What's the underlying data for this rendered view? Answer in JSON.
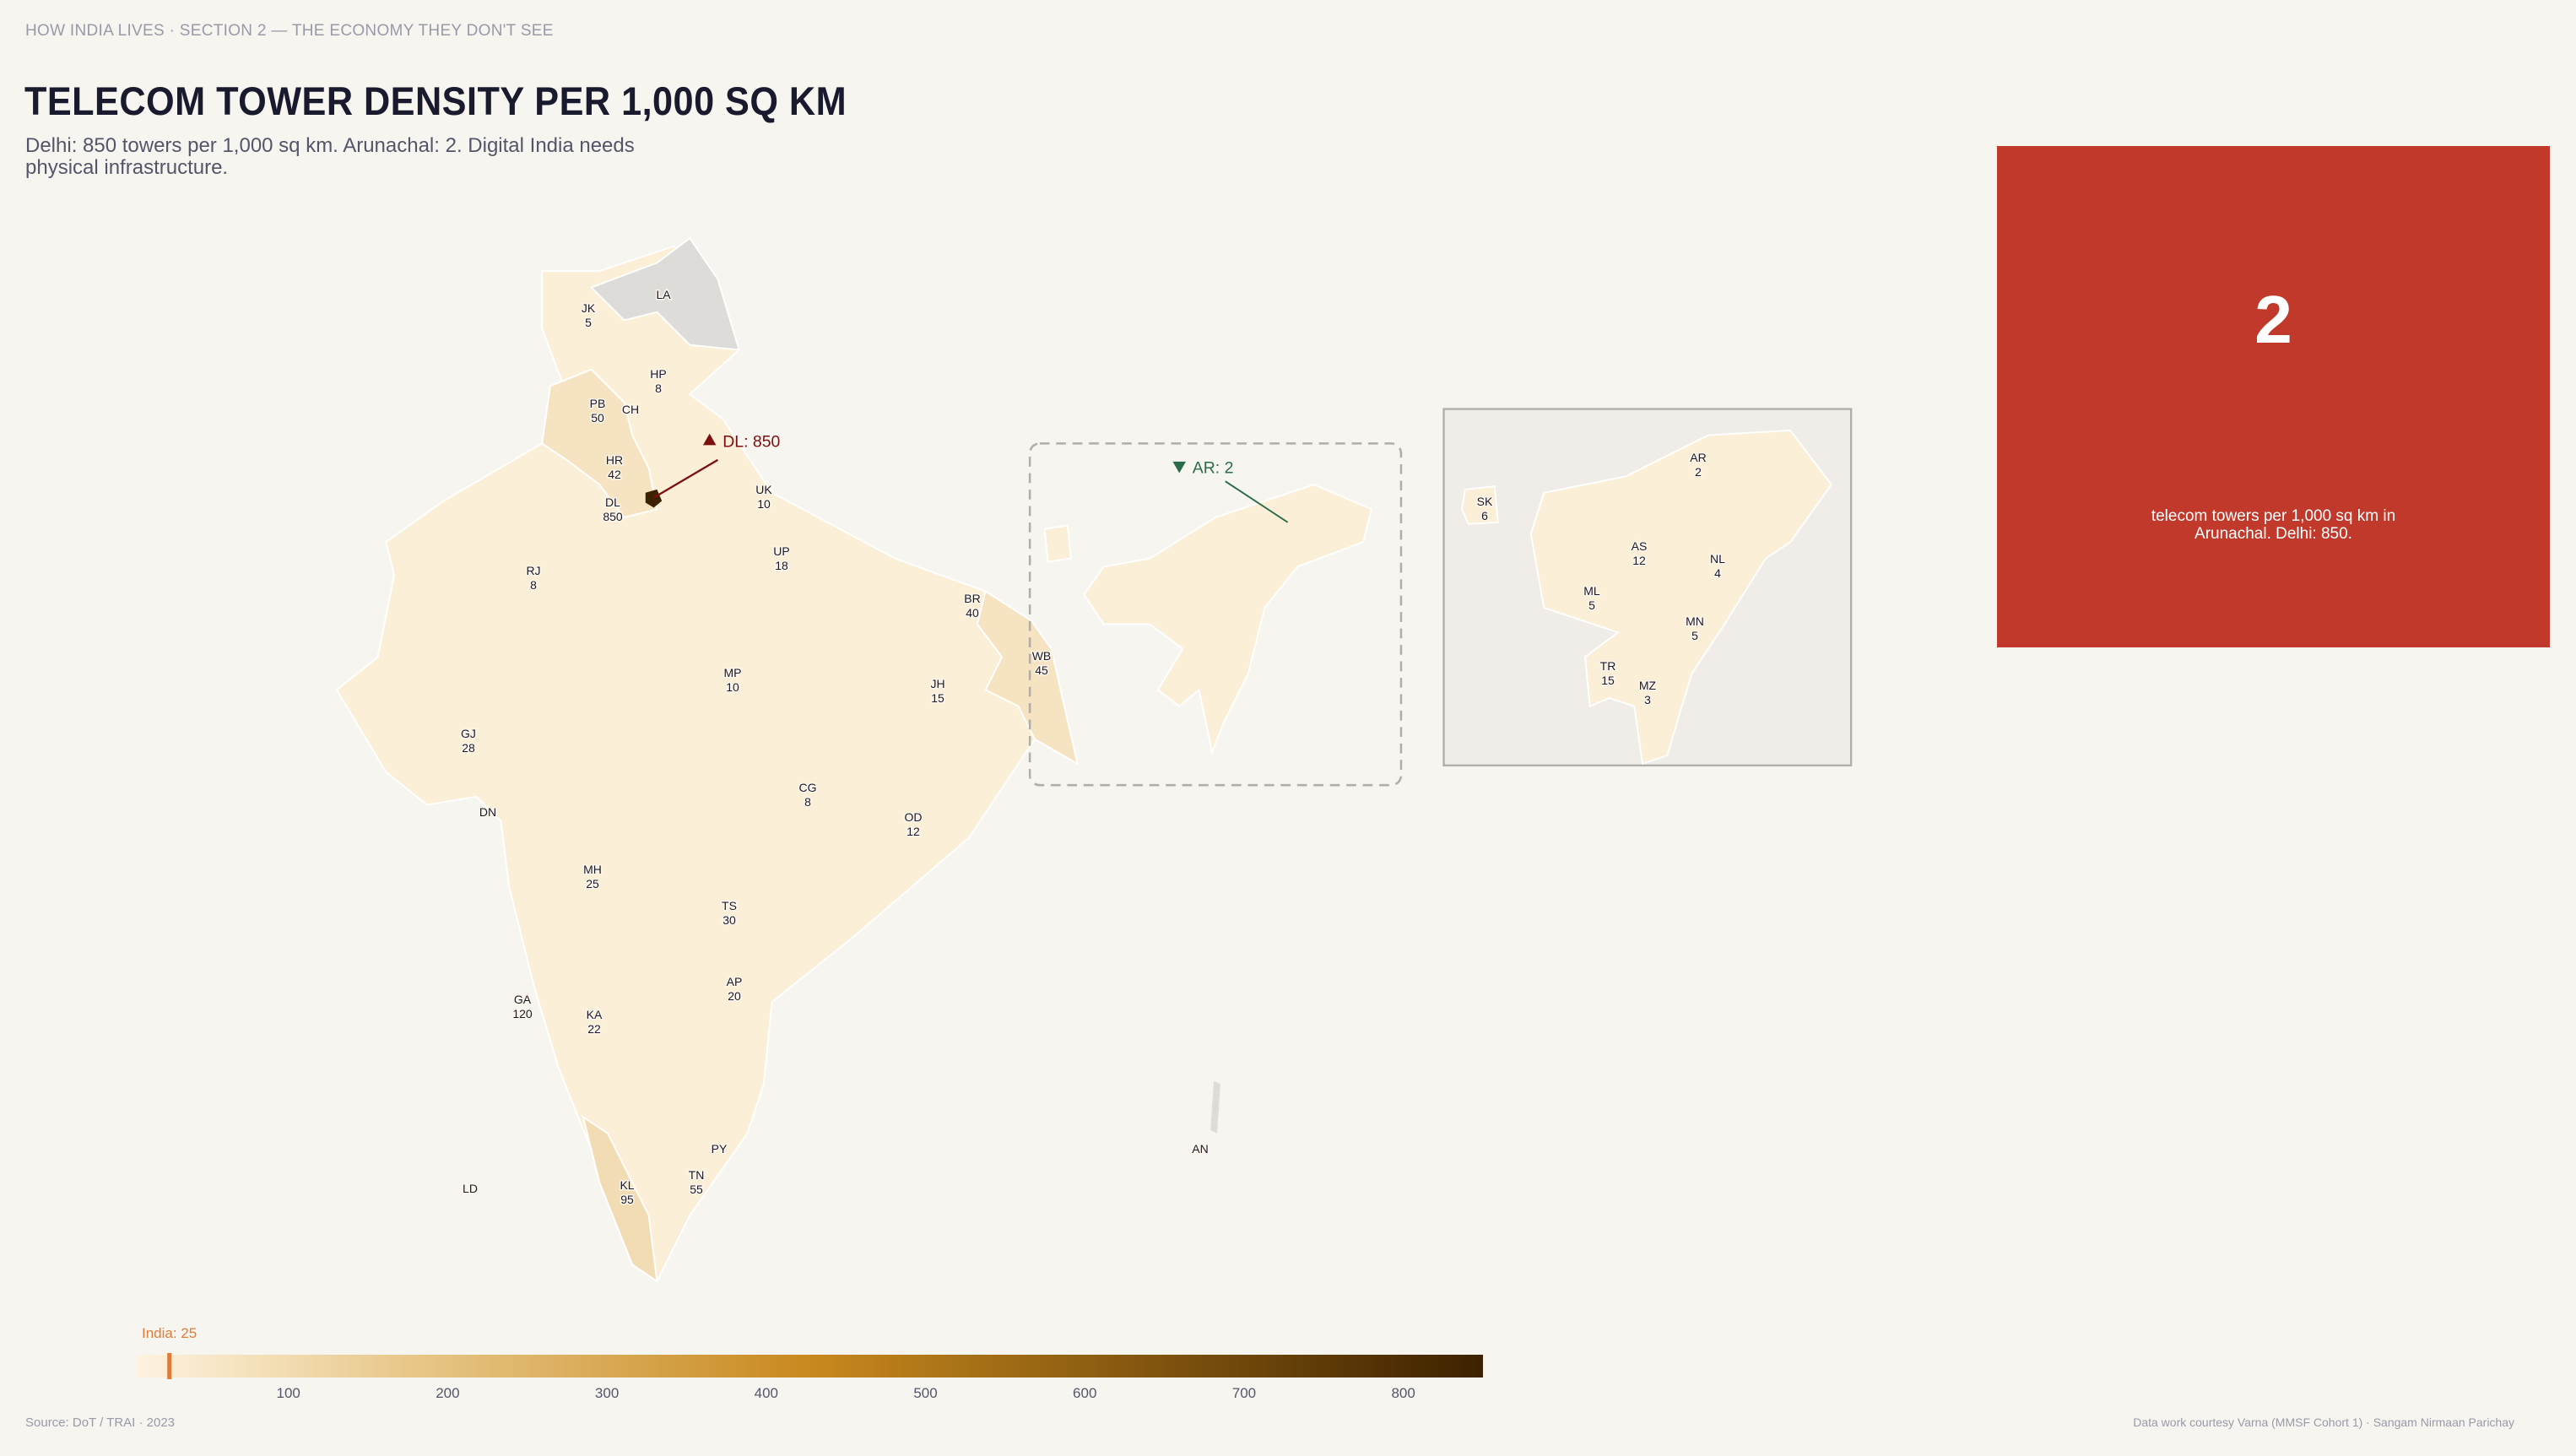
{
  "header": {
    "kicker": "HOW INDIA LIVES  ·  SECTION 2 — THE ECONOMY THEY DON'T SEE",
    "title": "TELECOM TOWER DENSITY PER 1,000 SQ KM",
    "subtitle": "Delhi: 850 towers per 1,000 sq km. Arunachal: 2. Digital India needs physical infrastructure."
  },
  "callout_card": {
    "value": "2",
    "text": "telecom towers per 1,000 sq km in Arunachal. Delhi: 850.",
    "color": "#c0392b"
  },
  "footer": {
    "source": "Source: DoT / TRAI  ·  2023",
    "credit": "Data work courtesy Varna (MMSF Cohort 1)  ·  Sangam Nirmaan Parichay"
  },
  "chart_data": {
    "type": "choropleth",
    "title": "TELECOM TOWER DENSITY PER 1,000 SQ KM",
    "unit": "towers per 1,000 sq km",
    "colorscale": {
      "min": 0,
      "max": 850,
      "colors": [
        "#fdf3e0",
        "#e8c88a",
        "#c8891e",
        "#3d2200"
      ],
      "ticks": [
        100,
        200,
        300,
        400,
        500,
        600,
        700,
        800
      ]
    },
    "national_average": {
      "label": "India: 25",
      "value": 25,
      "color": "#e07b39"
    },
    "no_data_color": "#dedcd8",
    "states": [
      {
        "code": "JK",
        "value": 5
      },
      {
        "code": "LA",
        "value": null
      },
      {
        "code": "HP",
        "value": 8
      },
      {
        "code": "PB",
        "value": 50
      },
      {
        "code": "CH",
        "value": null
      },
      {
        "code": "HR",
        "value": 42
      },
      {
        "code": "DL",
        "value": 850
      },
      {
        "code": "UK",
        "value": 10
      },
      {
        "code": "RJ",
        "value": 8
      },
      {
        "code": "UP",
        "value": 18
      },
      {
        "code": "BR",
        "value": 40
      },
      {
        "code": "WB",
        "value": 45
      },
      {
        "code": "JH",
        "value": 15
      },
      {
        "code": "MP",
        "value": 10
      },
      {
        "code": "GJ",
        "value": 28
      },
      {
        "code": "CG",
        "value": 8
      },
      {
        "code": "OD",
        "value": 12
      },
      {
        "code": "DN",
        "value": null
      },
      {
        "code": "MH",
        "value": 25
      },
      {
        "code": "TS",
        "value": 30
      },
      {
        "code": "AP",
        "value": 20
      },
      {
        "code": "GA",
        "value": 120
      },
      {
        "code": "KA",
        "value": 22
      },
      {
        "code": "PY",
        "value": null
      },
      {
        "code": "TN",
        "value": 55
      },
      {
        "code": "KL",
        "value": 95
      },
      {
        "code": "LD",
        "value": null
      },
      {
        "code": "AN",
        "value": null
      }
    ],
    "inset_states": [
      {
        "code": "SK",
        "value": 6
      },
      {
        "code": "AR",
        "value": 2
      },
      {
        "code": "AS",
        "value": 12
      },
      {
        "code": "NL",
        "value": 4
      },
      {
        "code": "ML",
        "value": 5
      },
      {
        "code": "MN",
        "value": 5
      },
      {
        "code": "TR",
        "value": 15
      },
      {
        "code": "MZ",
        "value": 3
      }
    ],
    "annotations": [
      {
        "label": "DL: 850",
        "marker": "triangle-up",
        "color": "#7b1010"
      },
      {
        "label": "AR: 2",
        "marker": "triangle-down",
        "color": "#2a6b4a"
      }
    ]
  }
}
